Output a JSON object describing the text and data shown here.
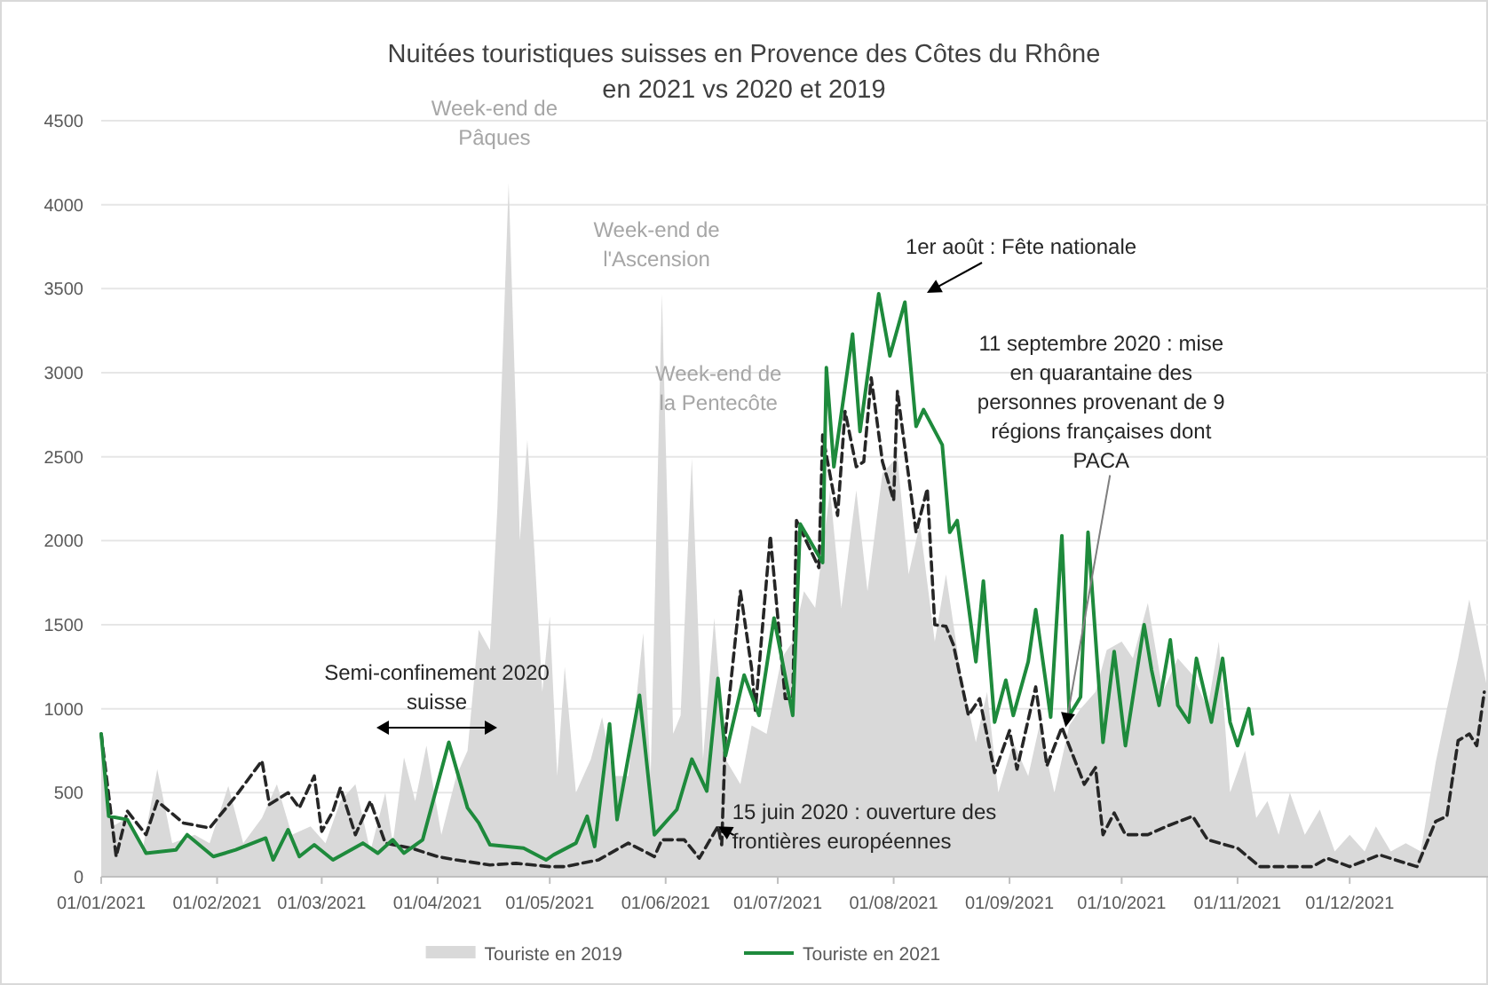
{
  "chart_data": {
    "type": "line",
    "title": "Nuitées touristiques suisses en Provence des Côtes du Rhône\nen 2021 vs 2020 et 2019",
    "xlim": [
      "2021-01-01",
      "2022-01-07"
    ],
    "xticks": [
      {
        "value": "2021-01-01",
        "label": "01/01/2021"
      },
      {
        "value": "2021-02-01",
        "label": "01/02/2021"
      },
      {
        "value": "2021-03-01",
        "label": "01/03/2021"
      },
      {
        "value": "2021-04-01",
        "label": "01/04/2021"
      },
      {
        "value": "2021-05-01",
        "label": "01/05/2021"
      },
      {
        "value": "2021-06-01",
        "label": "01/06/2021"
      },
      {
        "value": "2021-07-01",
        "label": "01/07/2021"
      },
      {
        "value": "2021-08-01",
        "label": "01/08/2021"
      },
      {
        "value": "2021-09-01",
        "label": "01/09/2021"
      },
      {
        "value": "2021-10-01",
        "label": "01/10/2021"
      },
      {
        "value": "2021-11-01",
        "label": "01/11/2021"
      },
      {
        "value": "2021-12-01",
        "label": "01/12/2021"
      }
    ],
    "ylim": [
      0,
      4500
    ],
    "yticks": [
      0,
      500,
      1000,
      1500,
      2000,
      2500,
      3000,
      3500,
      4000,
      4500
    ],
    "grid": "y",
    "legend": "bottom",
    "series": [
      {
        "name": "Touriste en 2019",
        "type": "area",
        "color": "#d9d9d9",
        "x": [
          "2021-01-01",
          "2021-01-04",
          "2021-01-08",
          "2021-01-12",
          "2021-01-16",
          "2021-01-20",
          "2021-01-26",
          "2021-01-30",
          "2021-02-04",
          "2021-02-08",
          "2021-02-13",
          "2021-02-17",
          "2021-02-21",
          "2021-02-26",
          "2021-03-02",
          "2021-03-06",
          "2021-03-10",
          "2021-03-14",
          "2021-03-18",
          "2021-03-20",
          "2021-03-23",
          "2021-03-26",
          "2021-03-29",
          "2021-04-02",
          "2021-04-06",
          "2021-04-09",
          "2021-04-12",
          "2021-04-15",
          "2021-04-17",
          "2021-04-20",
          "2021-04-23",
          "2021-04-25",
          "2021-04-27",
          "2021-04-29",
          "2021-05-01",
          "2021-05-03",
          "2021-05-05",
          "2021-05-08",
          "2021-05-12",
          "2021-05-15",
          "2021-05-18",
          "2021-05-22",
          "2021-05-26",
          "2021-05-28",
          "2021-05-31",
          "2021-06-03",
          "2021-06-05",
          "2021-06-08",
          "2021-06-11",
          "2021-06-14",
          "2021-06-17",
          "2021-06-21",
          "2021-06-24",
          "2021-06-28",
          "2021-07-02",
          "2021-07-05",
          "2021-07-08",
          "2021-07-11",
          "2021-07-15",
          "2021-07-18",
          "2021-07-22",
          "2021-07-25",
          "2021-07-29",
          "2021-08-02",
          "2021-08-05",
          "2021-08-08",
          "2021-08-12",
          "2021-08-15",
          "2021-08-19",
          "2021-08-23",
          "2021-08-26",
          "2021-08-29",
          "2021-09-02",
          "2021-09-06",
          "2021-09-09",
          "2021-09-13",
          "2021-09-17",
          "2021-09-20",
          "2021-09-24",
          "2021-09-27",
          "2021-10-01",
          "2021-10-04",
          "2021-10-08",
          "2021-10-12",
          "2021-10-16",
          "2021-10-20",
          "2021-10-24",
          "2021-10-27",
          "2021-10-30",
          "2021-11-03",
          "2021-11-06",
          "2021-11-09",
          "2021-11-12",
          "2021-11-15",
          "2021-11-19",
          "2021-11-23",
          "2021-11-27",
          "2021-12-01",
          "2021-12-05",
          "2021-12-08",
          "2021-12-12",
          "2021-12-16",
          "2021-12-20",
          "2021-12-24",
          "2021-12-27",
          "2021-12-30",
          "2022-01-02",
          "2022-01-07"
        ],
        "values": [
          850,
          300,
          350,
          150,
          640,
          200,
          250,
          200,
          540,
          200,
          350,
          550,
          250,
          300,
          200,
          450,
          550,
          150,
          500,
          200,
          710,
          450,
          780,
          250,
          600,
          750,
          1470,
          1350,
          2200,
          4130,
          2000,
          2600,
          1900,
          1100,
          1550,
          600,
          1250,
          500,
          700,
          950,
          600,
          600,
          1450,
          600,
          3470,
          850,
          960,
          2490,
          700,
          1540,
          700,
          550,
          900,
          850,
          1300,
          1400,
          1700,
          1600,
          2300,
          1600,
          2300,
          1700,
          2400,
          2500,
          1800,
          2100,
          1400,
          1800,
          1200,
          800,
          1100,
          500,
          800,
          600,
          900,
          500,
          900,
          1000,
          1100,
          1350,
          1400,
          1300,
          1630,
          1100,
          1300,
          1200,
          1000,
          1400,
          500,
          750,
          350,
          450,
          250,
          500,
          250,
          400,
          150,
          250,
          150,
          300,
          150,
          200,
          150,
          680,
          1000,
          1300,
          1650,
          1100
        ]
      },
      {
        "color": "#262626",
        "line_style": "dashed",
        "x": [
          "2021-01-01",
          "2021-01-05",
          "2021-01-08",
          "2021-01-13",
          "2021-01-16",
          "2021-01-23",
          "2021-01-30",
          "2021-02-06",
          "2021-02-13",
          "2021-02-15",
          "2021-02-20",
          "2021-02-23",
          "2021-02-27",
          "2021-03-01",
          "2021-03-04",
          "2021-03-06",
          "2021-03-10",
          "2021-03-14",
          "2021-03-18",
          "2021-03-25",
          "2021-04-01",
          "2021-04-06",
          "2021-04-15",
          "2021-04-22",
          "2021-05-01",
          "2021-05-05",
          "2021-05-14",
          "2021-05-22",
          "2021-05-29",
          "2021-05-31",
          "2021-06-06",
          "2021-06-10",
          "2021-06-15",
          "2021-06-16",
          "2021-06-17",
          "2021-06-21",
          "2021-06-24",
          "2021-06-25",
          "2021-06-29",
          "2021-07-03",
          "2021-07-05",
          "2021-07-06",
          "2021-07-12",
          "2021-07-13",
          "2021-07-17",
          "2021-07-19",
          "2021-07-22",
          "2021-07-24",
          "2021-07-26",
          "2021-07-29",
          "2021-08-01",
          "2021-08-02",
          "2021-08-07",
          "2021-08-10",
          "2021-08-12",
          "2021-08-15",
          "2021-08-17",
          "2021-08-21",
          "2021-08-24",
          "2021-08-28",
          "2021-09-01",
          "2021-09-03",
          "2021-09-08",
          "2021-09-11",
          "2021-09-15",
          "2021-09-21",
          "2021-09-24",
          "2021-09-26",
          "2021-09-29",
          "2021-10-02",
          "2021-10-08",
          "2021-10-13",
          "2021-10-20",
          "2021-10-24",
          "2021-11-01",
          "2021-11-07",
          "2021-11-21",
          "2021-11-25",
          "2021-12-01",
          "2021-12-09",
          "2021-12-19",
          "2021-12-24",
          "2021-12-27",
          "2021-12-30",
          "2022-01-02",
          "2022-01-04",
          "2022-01-06"
        ],
        "values": [
          850,
          120,
          390,
          250,
          450,
          320,
          290,
          480,
          690,
          430,
          500,
          410,
          600,
          270,
          390,
          530,
          250,
          450,
          200,
          170,
          120,
          100,
          70,
          80,
          60,
          60,
          100,
          200,
          120,
          220,
          220,
          110,
          300,
          190,
          850,
          1700,
          1240,
          990,
          2030,
          1060,
          1060,
          2120,
          1840,
          2630,
          2150,
          2770,
          2440,
          2470,
          2970,
          2470,
          2240,
          2890,
          2050,
          2310,
          1500,
          1490,
          1380,
          960,
          1060,
          620,
          870,
          640,
          1130,
          660,
          890,
          550,
          650,
          250,
          380,
          250,
          250,
          300,
          360,
          220,
          170,
          60,
          60,
          110,
          60,
          130,
          60,
          330,
          360,
          810,
          850,
          780,
          1100
        ]
      },
      {
        "name": "Touriste en 2021",
        "color": "#1e8a3c",
        "x": [
          "2021-01-01",
          "2021-01-03",
          "2021-01-08",
          "2021-01-13",
          "2021-01-21",
          "2021-01-24",
          "2021-01-31",
          "2021-02-06",
          "2021-02-14",
          "2021-02-16",
          "2021-02-20",
          "2021-02-23",
          "2021-02-27",
          "2021-03-04",
          "2021-03-12",
          "2021-03-16",
          "2021-03-20",
          "2021-03-23",
          "2021-03-28",
          "2021-04-04",
          "2021-04-09",
          "2021-04-12",
          "2021-04-15",
          "2021-04-24",
          "2021-04-30",
          "2021-05-02",
          "2021-05-08",
          "2021-05-11",
          "2021-05-13",
          "2021-05-17",
          "2021-05-19",
          "2021-05-25",
          "2021-05-29",
          "2021-06-04",
          "2021-06-08",
          "2021-06-12",
          "2021-06-15",
          "2021-06-17",
          "2021-06-22",
          "2021-06-26",
          "2021-06-30",
          "2021-07-05",
          "2021-07-07",
          "2021-07-13",
          "2021-07-14",
          "2021-07-16",
          "2021-07-21",
          "2021-07-23",
          "2021-07-28",
          "2021-07-31",
          "2021-08-04",
          "2021-08-07",
          "2021-08-09",
          "2021-08-14",
          "2021-08-16",
          "2021-08-18",
          "2021-08-23",
          "2021-08-25",
          "2021-08-28",
          "2021-08-31",
          "2021-09-02",
          "2021-09-06",
          "2021-09-08",
          "2021-09-12",
          "2021-09-15",
          "2021-09-17",
          "2021-09-20",
          "2021-09-22",
          "2021-09-26",
          "2021-09-29",
          "2021-10-02",
          "2021-10-07",
          "2021-10-09",
          "2021-10-11",
          "2021-10-14",
          "2021-10-16",
          "2021-10-19",
          "2021-10-21",
          "2021-10-25",
          "2021-10-28",
          "2021-10-30",
          "2021-11-01",
          "2021-11-04",
          "2021-11-05"
        ],
        "values": [
          850,
          360,
          340,
          140,
          160,
          250,
          120,
          160,
          230,
          100,
          280,
          120,
          190,
          100,
          200,
          140,
          220,
          140,
          220,
          800,
          410,
          320,
          190,
          170,
          100,
          130,
          200,
          360,
          180,
          910,
          340,
          1080,
          250,
          400,
          700,
          510,
          1180,
          720,
          1200,
          960,
          1540,
          960,
          2100,
          1870,
          3030,
          2440,
          3230,
          2650,
          3470,
          3100,
          3420,
          2680,
          2780,
          2570,
          2050,
          2120,
          1280,
          1760,
          920,
          1170,
          960,
          1280,
          1590,
          950,
          2030,
          960,
          1070,
          2050,
          800,
          1340,
          780,
          1500,
          1230,
          1020,
          1410,
          1020,
          920,
          1300,
          920,
          1300,
          920,
          780,
          1000,
          850
        ]
      }
    ],
    "annotations": [
      {
        "text": "Week-end de\nPâques",
        "x": "2021-04-20",
        "y": 4130
      },
      {
        "text": "Week-end de\nl'Ascension",
        "x": "2021-05-31",
        "y": 3470
      },
      {
        "text": "Week-end de\nla Pentecôte",
        "x": "2021-06-08",
        "y": 2490
      },
      "Semi-confinement 2020\nsuisse",
      "1er août : Fête nationale",
      {
        "text": "15 juin 2020 : ouverture des\nfrontières européennes",
        "x": "2021-06-15",
        "y": 300
      },
      {
        "text": "11 septembre 2020 : mise\nen quarantaine des\npersonnes provenant de 9\nrégions françaises dont\nPACA",
        "x": "2021-09-16",
        "y": 890
      }
    ]
  }
}
